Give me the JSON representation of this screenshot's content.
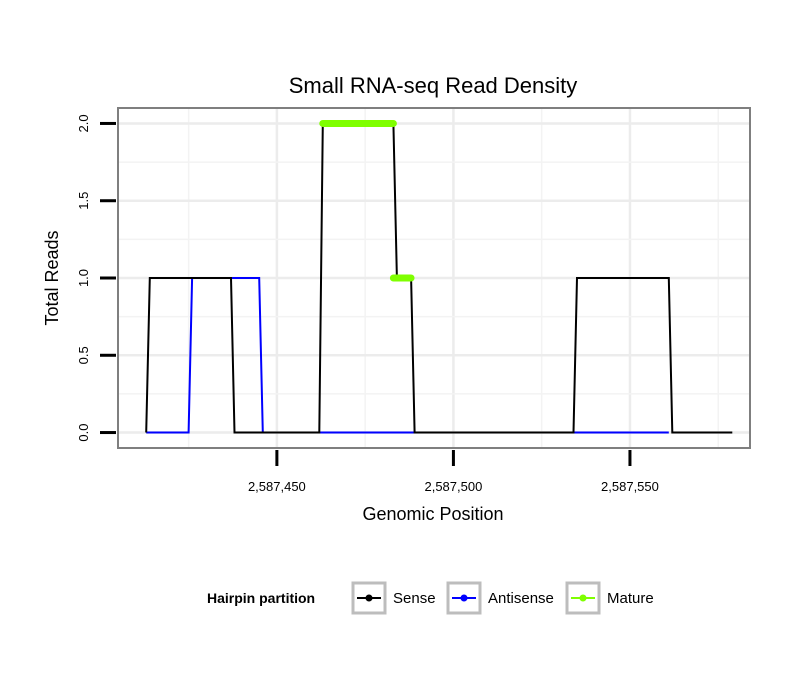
{
  "chart_data": {
    "type": "line",
    "title": "Small RNA-seq Read Density",
    "xlabel": "Genomic Position",
    "ylabel": "Total Reads",
    "xlim": [
      2587405,
      2587584
    ],
    "ylim": [
      -0.1,
      2.1
    ],
    "x_ticks": [
      2587450,
      2587500,
      2587550
    ],
    "x_tick_labels": [
      "2,587,450",
      "2,587,500",
      "2,587,550"
    ],
    "y_ticks": [
      0,
      0.5,
      1,
      1.5,
      2
    ],
    "y_tick_labels": [
      "0.0",
      "0.5",
      "1.0",
      "1.5",
      "2.0"
    ],
    "grid": true,
    "legend": {
      "title": "Hairpin partition",
      "position": "bottom",
      "entries": [
        "Sense",
        "Antisense",
        "Mature"
      ]
    },
    "series": [
      {
        "name": "Sense",
        "color": "#000000",
        "points": [
          [
            2587413,
            0
          ],
          [
            2587414,
            1
          ],
          [
            2587437,
            1
          ],
          [
            2587438,
            0
          ],
          [
            2587462,
            0
          ],
          [
            2587463,
            2
          ],
          [
            2587483,
            2
          ],
          [
            2587484,
            1
          ],
          [
            2587488,
            1
          ],
          [
            2587489,
            0
          ],
          [
            2587534,
            0
          ],
          [
            2587535,
            1
          ],
          [
            2587561,
            1
          ],
          [
            2587562,
            0
          ],
          [
            2587579,
            0
          ]
        ]
      },
      {
        "name": "Antisense",
        "color": "#0000ff",
        "points": [
          [
            2587413,
            0
          ],
          [
            2587425,
            0
          ],
          [
            2587426,
            1
          ],
          [
            2587445,
            1
          ],
          [
            2587446,
            0
          ],
          [
            2587534,
            0
          ],
          [
            2587535,
            0
          ],
          [
            2587561,
            0
          ]
        ]
      },
      {
        "name": "Mature",
        "color": "#7fff00",
        "segments": [
          [
            [
              2587463,
              2
            ],
            [
              2587483,
              2
            ]
          ],
          [
            [
              2587483,
              1
            ],
            [
              2587488,
              1
            ]
          ]
        ]
      }
    ]
  }
}
